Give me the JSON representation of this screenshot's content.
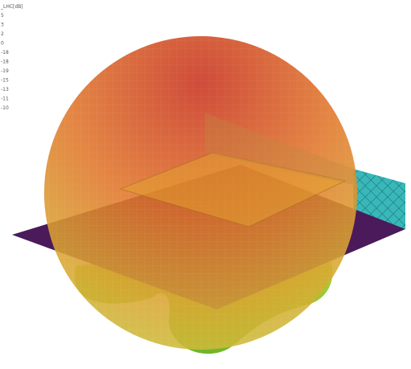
{
  "legend": {
    "title": "_LHC[dB]",
    "labels": [
      "5",
      "3",
      "2",
      "0",
      "-18",
      "-18",
      "-19",
      "-15",
      "-13",
      "-11",
      "-10"
    ]
  }
}
